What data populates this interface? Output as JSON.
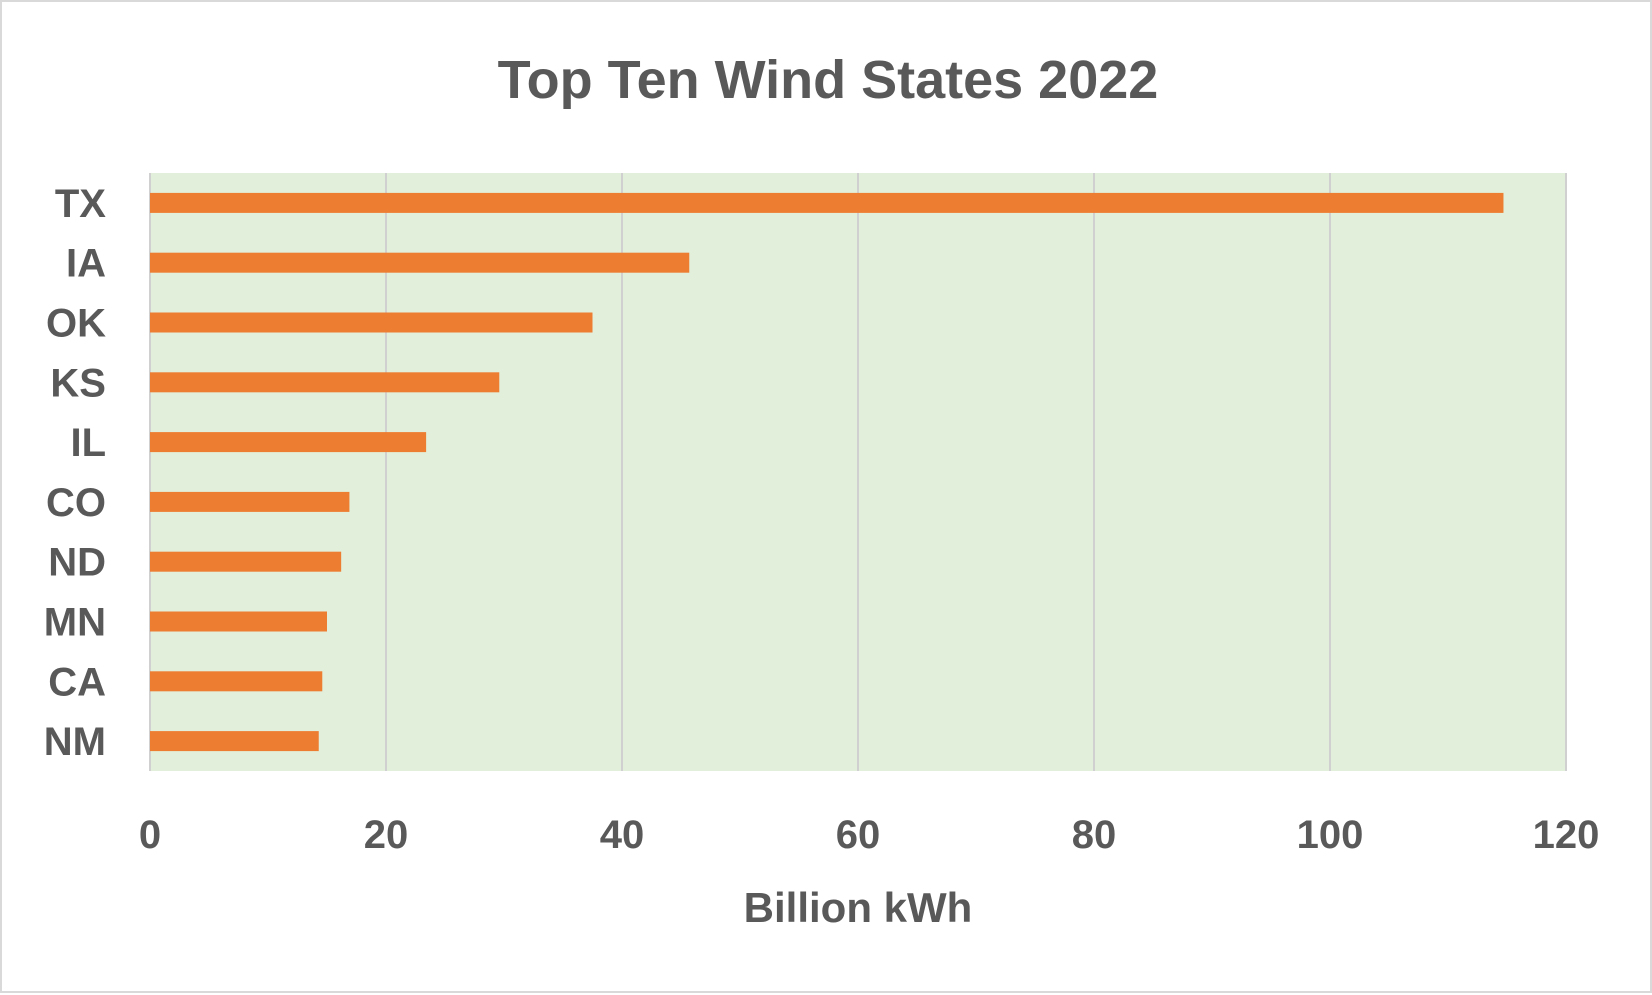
{
  "chart_data": {
    "type": "bar",
    "orientation": "horizontal",
    "title": "Top Ten Wind States 2022",
    "xlabel": "Billion kWh",
    "ylabel": "",
    "categories": [
      "TX",
      "IA",
      "OK",
      "KS",
      "IL",
      "CO",
      "ND",
      "MN",
      "CA",
      "NM"
    ],
    "values": [
      114.7,
      45.7,
      37.5,
      29.6,
      23.4,
      16.9,
      16.2,
      15.0,
      14.6,
      14.3
    ],
    "xlim": [
      0,
      120
    ],
    "xticks": [
      "0",
      "20",
      "40",
      "60",
      "80",
      "100",
      "120"
    ],
    "grid": "vertical",
    "legend": "none",
    "colors": {
      "bar": "#ED7D31",
      "plot_background": "#E2EFDA",
      "gridline": "#D0D0D0",
      "text": "#595959"
    }
  }
}
